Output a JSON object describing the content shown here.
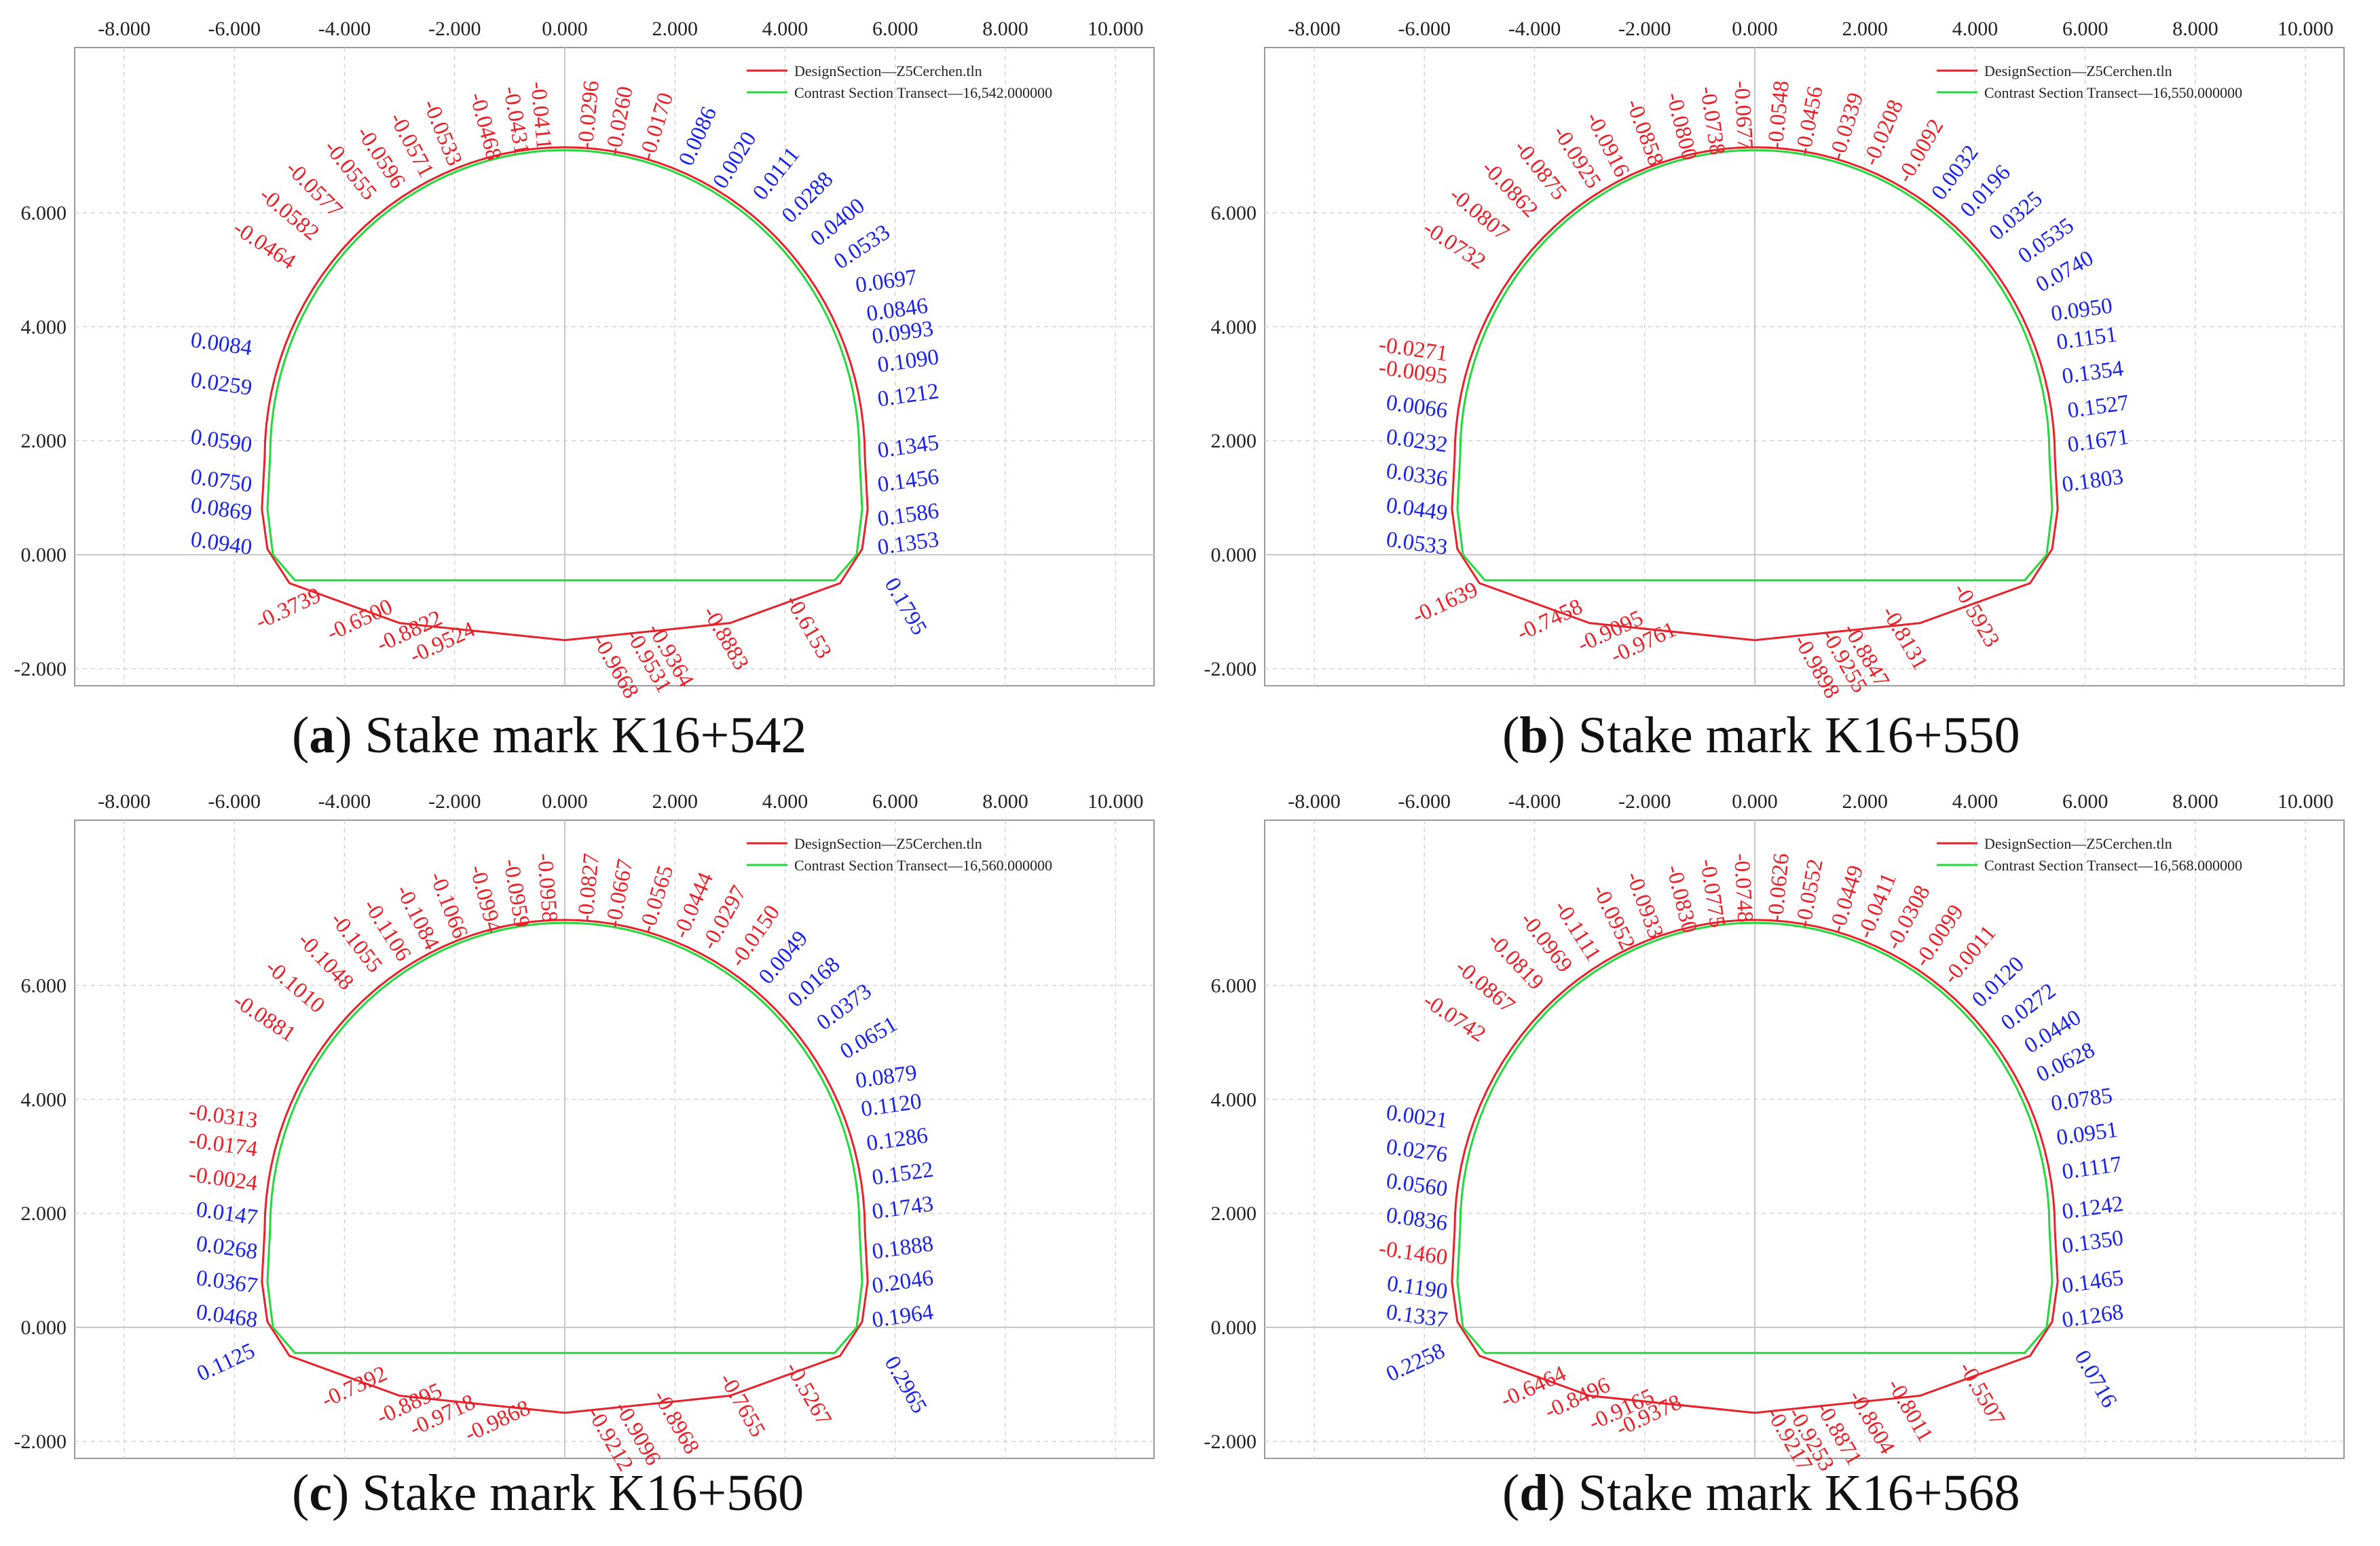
{
  "legend": {
    "design": "DesignSection—Z5Cerchen.tln",
    "contrast_prefix": "Contrast Section Transect—"
  },
  "colors": {
    "design": "#e8202a",
    "contrast": "#22d83a",
    "positive": "#1a22e6",
    "negative": "#e8202a",
    "grid": "#d4d4d4"
  },
  "chart_data": [
    {
      "type": "scatter",
      "panel_letter": "a",
      "caption": "Stake mark K16+542",
      "transect": "16,542.000000",
      "x_ticks": [
        "-8.000",
        "-6.000",
        "-4.000",
        "-2.000",
        "0.000",
        "2.000",
        "4.000",
        "6.000",
        "8.000",
        "10.000"
      ],
      "y_ticks": [
        "6.000",
        "4.000",
        "2.000",
        "0.000",
        "-2.000"
      ],
      "xlim": [
        -8.9,
        10.7
      ],
      "ylim": [
        -2.3,
        8.9
      ],
      "labels": [
        {
          "v": "-0.0411",
          "x": -0.5,
          "y": 7.1
        },
        {
          "v": "-0.0296",
          "x": 0.5,
          "y": 7.1
        },
        {
          "v": "-0.0431",
          "x": -0.9,
          "y": 7.0
        },
        {
          "v": "-0.0260",
          "x": 1.0,
          "y": 7.0
        },
        {
          "v": "-0.0468",
          "x": -1.4,
          "y": 6.9
        },
        {
          "v": "-0.0170",
          "x": 1.6,
          "y": 6.9
        },
        {
          "v": "-0.0533",
          "x": -2.1,
          "y": 6.8
        },
        {
          "v": "0.0086",
          "x": 2.3,
          "y": 6.8
        },
        {
          "v": "-0.0571",
          "x": -2.6,
          "y": 6.6
        },
        {
          "v": "0.0020",
          "x": 2.9,
          "y": 6.4
        },
        {
          "v": "-0.0596",
          "x": -3.1,
          "y": 6.4
        },
        {
          "v": "0.0111",
          "x": 3.6,
          "y": 6.2
        },
        {
          "v": "-0.0555",
          "x": -3.6,
          "y": 6.2
        },
        {
          "v": "0.0288",
          "x": 4.1,
          "y": 5.8
        },
        {
          "v": "-0.0577",
          "x": -4.2,
          "y": 5.9
        },
        {
          "v": "0.0400",
          "x": 4.6,
          "y": 5.4
        },
        {
          "v": "-0.0582",
          "x": -4.6,
          "y": 5.5
        },
        {
          "v": "0.0533",
          "x": 5.0,
          "y": 5.0
        },
        {
          "v": "-0.0464",
          "x": -5.0,
          "y": 5.0
        },
        {
          "v": "0.0697",
          "x": 5.3,
          "y": 4.6
        },
        {
          "v": "0.0846",
          "x": 5.5,
          "y": 4.1
        },
        {
          "v": "0.0993",
          "x": 5.6,
          "y": 3.7
        },
        {
          "v": "0.0084",
          "x": -5.7,
          "y": 3.5
        },
        {
          "v": "0.1090",
          "x": 5.7,
          "y": 3.2
        },
        {
          "v": "0.0259",
          "x": -5.7,
          "y": 2.8
        },
        {
          "v": "0.1212",
          "x": 5.7,
          "y": 2.6
        },
        {
          "v": "0.0590",
          "x": -5.7,
          "y": 1.8
        },
        {
          "v": "0.1345",
          "x": 5.7,
          "y": 1.7
        },
        {
          "v": "0.0750",
          "x": -5.7,
          "y": 1.1
        },
        {
          "v": "0.1456",
          "x": 5.7,
          "y": 1.1
        },
        {
          "v": "0.0869",
          "x": -5.7,
          "y": 0.6
        },
        {
          "v": "0.1586",
          "x": 5.7,
          "y": 0.5
        },
        {
          "v": "0.0940",
          "x": -5.7,
          "y": 0.0
        },
        {
          "v": "0.1353",
          "x": 5.7,
          "y": 0.0
        },
        {
          "v": "0.1795",
          "x": 5.8,
          "y": -0.5
        },
        {
          "v": "-0.3739",
          "x": -4.4,
          "y": -0.8
        },
        {
          "v": "-0.6500",
          "x": -3.1,
          "y": -1.0
        },
        {
          "v": "-0.8822",
          "x": -2.2,
          "y": -1.2
        },
        {
          "v": "-0.9524",
          "x": -1.6,
          "y": -1.4
        },
        {
          "v": "-0.9668",
          "x": 0.5,
          "y": -1.5
        },
        {
          "v": "-0.9531",
          "x": 1.1,
          "y": -1.4
        },
        {
          "v": "-0.9364",
          "x": 1.5,
          "y": -1.3
        },
        {
          "v": "-0.8883",
          "x": 2.5,
          "y": -1.0
        },
        {
          "v": "-0.6153",
          "x": 4.0,
          "y": -0.8
        }
      ]
    },
    {
      "type": "scatter",
      "panel_letter": "b",
      "caption": "Stake mark K16+550",
      "transect": "16,550.000000",
      "x_ticks": [
        "-8.000",
        "-6.000",
        "-4.000",
        "-2.000",
        "0.000",
        "2.000",
        "4.000",
        "6.000",
        "8.000",
        "10.000"
      ],
      "y_ticks": [
        "6.000",
        "4.000",
        "2.000",
        "0.000",
        "-2.000"
      ],
      "xlim": [
        -8.9,
        10.7
      ],
      "ylim": [
        -2.3,
        8.9
      ],
      "labels": [
        {
          "v": "-0.0677",
          "x": -0.3,
          "y": 7.1
        },
        {
          "v": "-0.0548",
          "x": 0.5,
          "y": 7.1
        },
        {
          "v": "-0.0738",
          "x": -0.8,
          "y": 7.0
        },
        {
          "v": "-0.0456",
          "x": 1.0,
          "y": 7.0
        },
        {
          "v": "-0.0800",
          "x": -1.3,
          "y": 6.9
        },
        {
          "v": "-0.0339",
          "x": 1.6,
          "y": 6.9
        },
        {
          "v": "-0.0858",
          "x": -1.9,
          "y": 6.8
        },
        {
          "v": "-0.0208",
          "x": 2.2,
          "y": 6.8
        },
        {
          "v": "-0.0916",
          "x": -2.5,
          "y": 6.6
        },
        {
          "v": "-0.0092",
          "x": 2.8,
          "y": 6.5
        },
        {
          "v": "-0.0925",
          "x": -3.0,
          "y": 6.4
        },
        {
          "v": "0.0032",
          "x": 3.4,
          "y": 6.2
        },
        {
          "v": "-0.0875",
          "x": -3.6,
          "y": 6.2
        },
        {
          "v": "0.0196",
          "x": 3.9,
          "y": 5.9
        },
        {
          "v": "-0.0862",
          "x": -4.1,
          "y": 5.9
        },
        {
          "v": "0.0325",
          "x": 4.4,
          "y": 5.5
        },
        {
          "v": "-0.0807",
          "x": -4.6,
          "y": 5.5
        },
        {
          "v": "0.0535",
          "x": 4.9,
          "y": 5.1
        },
        {
          "v": "-0.0732",
          "x": -5.0,
          "y": 5.0
        },
        {
          "v": "0.0740",
          "x": 5.2,
          "y": 4.6
        },
        {
          "v": "0.0950",
          "x": 5.4,
          "y": 4.1
        },
        {
          "v": "-0.0271",
          "x": -5.6,
          "y": 3.4
        },
        {
          "v": "0.1151",
          "x": 5.5,
          "y": 3.6
        },
        {
          "v": "-0.0095",
          "x": -5.6,
          "y": 3.0
        },
        {
          "v": "0.1354",
          "x": 5.6,
          "y": 3.0
        },
        {
          "v": "0.0066",
          "x": -5.6,
          "y": 2.4
        },
        {
          "v": "0.1527",
          "x": 5.7,
          "y": 2.4
        },
        {
          "v": "0.0232",
          "x": -5.6,
          "y": 1.8
        },
        {
          "v": "0.1671",
          "x": 5.7,
          "y": 1.8
        },
        {
          "v": "0.0336",
          "x": -5.6,
          "y": 1.2
        },
        {
          "v": "0.1803",
          "x": 5.6,
          "y": 1.1
        },
        {
          "v": "0.0449",
          "x": -5.6,
          "y": 0.6
        },
        {
          "v": "0.0533",
          "x": -5.6,
          "y": 0.0
        },
        {
          "v": "-0.1639",
          "x": -5.0,
          "y": -0.7
        },
        {
          "v": "-0.7458",
          "x": -3.1,
          "y": -1.0
        },
        {
          "v": "-0.9095",
          "x": -2.0,
          "y": -1.2
        },
        {
          "v": "-0.9761",
          "x": -1.4,
          "y": -1.4
        },
        {
          "v": "-0.9898",
          "x": 0.7,
          "y": -1.5
        },
        {
          "v": "-0.9255",
          "x": 1.2,
          "y": -1.4
        },
        {
          "v": "-0.8847",
          "x": 1.6,
          "y": -1.3
        },
        {
          "v": "-0.8131",
          "x": 2.3,
          "y": -1.0
        },
        {
          "v": "-0.5923",
          "x": 3.6,
          "y": -0.6
        }
      ]
    },
    {
      "type": "scatter",
      "panel_letter": "c",
      "caption": "Stake mark K16+560",
      "transect": "16,560.000000",
      "x_ticks": [
        "-8.000",
        "-6.000",
        "-4.000",
        "-2.000",
        "0.000",
        "2.000",
        "4.000",
        "6.000",
        "8.000",
        "10.000"
      ],
      "y_ticks": [
        "6.000",
        "4.000",
        "2.000",
        "0.000",
        "-2.000"
      ],
      "xlim": [
        -8.9,
        10.7
      ],
      "ylim": [
        -2.3,
        8.9
      ],
      "labels": [
        {
          "v": "-0.0958",
          "x": -0.4,
          "y": 7.1
        },
        {
          "v": "-0.0827",
          "x": 0.5,
          "y": 7.1
        },
        {
          "v": "-0.0959",
          "x": -0.9,
          "y": 7.0
        },
        {
          "v": "-0.0667",
          "x": 1.0,
          "y": 7.0
        },
        {
          "v": "-0.0994",
          "x": -1.4,
          "y": 6.9
        },
        {
          "v": "-0.0565",
          "x": 1.6,
          "y": 6.9
        },
        {
          "v": "-0.1066",
          "x": -2.0,
          "y": 6.8
        },
        {
          "v": "-0.0444",
          "x": 2.2,
          "y": 6.8
        },
        {
          "v": "-0.1084",
          "x": -2.5,
          "y": 6.6
        },
        {
          "v": "-0.0297",
          "x": 2.7,
          "y": 6.6
        },
        {
          "v": "-0.1106",
          "x": -3.0,
          "y": 6.4
        },
        {
          "v": "-0.0150",
          "x": 3.2,
          "y": 6.3
        },
        {
          "v": "-0.1055",
          "x": -3.5,
          "y": 6.2
        },
        {
          "v": "0.0049",
          "x": 3.7,
          "y": 6.0
        },
        {
          "v": "-0.1048",
          "x": -4.0,
          "y": 5.9
        },
        {
          "v": "0.0168",
          "x": 4.2,
          "y": 5.6
        },
        {
          "v": "-0.1010",
          "x": -4.5,
          "y": 5.5
        },
        {
          "v": "0.0373",
          "x": 4.7,
          "y": 5.2
        },
        {
          "v": "-0.0881",
          "x": -5.0,
          "y": 5.0
        },
        {
          "v": "0.0651",
          "x": 5.1,
          "y": 4.7
        },
        {
          "v": "0.0879",
          "x": 5.3,
          "y": 4.2
        },
        {
          "v": "-0.0313",
          "x": -5.6,
          "y": 3.5
        },
        {
          "v": "0.1120",
          "x": 5.4,
          "y": 3.7
        },
        {
          "v": "-0.0174",
          "x": -5.6,
          "y": 3.0
        },
        {
          "v": "0.1286",
          "x": 5.5,
          "y": 3.1
        },
        {
          "v": "-0.0024",
          "x": -5.6,
          "y": 2.4
        },
        {
          "v": "0.1522",
          "x": 5.6,
          "y": 2.5
        },
        {
          "v": "0.0147",
          "x": -5.6,
          "y": 1.8
        },
        {
          "v": "0.1743",
          "x": 5.6,
          "y": 1.9
        },
        {
          "v": "0.0268",
          "x": -5.6,
          "y": 1.2
        },
        {
          "v": "0.1888",
          "x": 5.6,
          "y": 1.2
        },
        {
          "v": "0.0367",
          "x": -5.6,
          "y": 0.6
        },
        {
          "v": "0.2046",
          "x": 5.6,
          "y": 0.6
        },
        {
          "v": "0.0468",
          "x": -5.6,
          "y": 0.0
        },
        {
          "v": "0.1964",
          "x": 5.6,
          "y": 0.0
        },
        {
          "v": "0.1125",
          "x": -5.6,
          "y": -0.5
        },
        {
          "v": "0.2965",
          "x": 5.8,
          "y": -0.6
        },
        {
          "v": "-0.7392",
          "x": -3.2,
          "y": -0.9
        },
        {
          "v": "-0.8895",
          "x": -2.2,
          "y": -1.2
        },
        {
          "v": "-0.9718",
          "x": -1.6,
          "y": -1.4
        },
        {
          "v": "-0.9868",
          "x": -0.6,
          "y": -1.5
        },
        {
          "v": "-0.9212",
          "x": 0.4,
          "y": -1.5
        },
        {
          "v": "-0.9096",
          "x": 0.9,
          "y": -1.4
        },
        {
          "v": "-0.8968",
          "x": 1.6,
          "y": -1.2
        },
        {
          "v": "-0.7655",
          "x": 2.8,
          "y": -0.9
        },
        {
          "v": "-0.5267",
          "x": 4.0,
          "y": -0.7
        }
      ]
    },
    {
      "type": "scatter",
      "panel_letter": "d",
      "caption": "Stake mark K16+568",
      "transect": "16,568.000000",
      "x_ticks": [
        "-8.000",
        "-6.000",
        "-4.000",
        "-2.000",
        "0.000",
        "2.000",
        "4.000",
        "6.000",
        "8.000",
        "10.000"
      ],
      "y_ticks": [
        "6.000",
        "4.000",
        "2.000",
        "0.000",
        "-2.000"
      ],
      "xlim": [
        -8.9,
        10.7
      ],
      "ylim": [
        -2.3,
        8.9
      ],
      "labels": [
        {
          "v": "-0.0748",
          "x": -0.3,
          "y": 7.1
        },
        {
          "v": "-0.0626",
          "x": 0.5,
          "y": 7.1
        },
        {
          "v": "-0.0775",
          "x": -0.8,
          "y": 7.0
        },
        {
          "v": "-0.0552",
          "x": 1.0,
          "y": 7.0
        },
        {
          "v": "-0.0830",
          "x": -1.3,
          "y": 6.9
        },
        {
          "v": "-0.0449",
          "x": 1.6,
          "y": 6.9
        },
        {
          "v": "-0.0933",
          "x": -1.9,
          "y": 6.8
        },
        {
          "v": "-0.0411",
          "x": 2.1,
          "y": 6.8
        },
        {
          "v": "-0.0952",
          "x": -2.4,
          "y": 6.6
        },
        {
          "v": "-0.0308",
          "x": 2.6,
          "y": 6.6
        },
        {
          "v": "-0.1111",
          "x": -3.0,
          "y": 6.4
        },
        {
          "v": "-0.0099",
          "x": 3.1,
          "y": 6.3
        },
        {
          "v": "-0.0969",
          "x": -3.5,
          "y": 6.2
        },
        {
          "v": "-0.0011",
          "x": 3.6,
          "y": 6.0
        },
        {
          "v": "-0.0819",
          "x": -4.0,
          "y": 5.9
        },
        {
          "v": "0.0120",
          "x": 4.1,
          "y": 5.6
        },
        {
          "v": "-0.0867",
          "x": -4.5,
          "y": 5.5
        },
        {
          "v": "0.0272",
          "x": 4.6,
          "y": 5.2
        },
        {
          "v": "-0.0742",
          "x": -5.0,
          "y": 5.0
        },
        {
          "v": "0.0440",
          "x": 5.0,
          "y": 4.8
        },
        {
          "v": "0.0628",
          "x": 5.2,
          "y": 4.3
        },
        {
          "v": "0.0021",
          "x": -5.6,
          "y": 3.5
        },
        {
          "v": "0.0785",
          "x": 5.4,
          "y": 3.8
        },
        {
          "v": "0.0276",
          "x": -5.6,
          "y": 2.9
        },
        {
          "v": "0.0951",
          "x": 5.5,
          "y": 3.2
        },
        {
          "v": "0.0560",
          "x": -5.6,
          "y": 2.3
        },
        {
          "v": "0.1117",
          "x": 5.6,
          "y": 2.6
        },
        {
          "v": "0.0836",
          "x": -5.6,
          "y": 1.7
        },
        {
          "v": "0.1242",
          "x": 5.6,
          "y": 1.9
        },
        {
          "v": "-0.1460",
          "x": -5.6,
          "y": 1.1
        },
        {
          "v": "0.1350",
          "x": 5.6,
          "y": 1.3
        },
        {
          "v": "0.1190",
          "x": -5.6,
          "y": 0.5
        },
        {
          "v": "0.1465",
          "x": 5.6,
          "y": 0.6
        },
        {
          "v": "0.1337",
          "x": -5.6,
          "y": 0.0
        },
        {
          "v": "0.1268",
          "x": 5.6,
          "y": 0.0
        },
        {
          "v": "0.2258",
          "x": -5.6,
          "y": -0.5
        },
        {
          "v": "0.0716",
          "x": 5.8,
          "y": -0.5
        },
        {
          "v": "-0.6464",
          "x": -3.4,
          "y": -0.9
        },
        {
          "v": "-0.8496",
          "x": -2.6,
          "y": -1.1
        },
        {
          "v": "-0.9165",
          "x": -1.8,
          "y": -1.3
        },
        {
          "v": "-0.9378",
          "x": -1.3,
          "y": -1.4
        },
        {
          "v": "-0.9217",
          "x": 0.2,
          "y": -1.5
        },
        {
          "v": "-0.9253",
          "x": 0.6,
          "y": -1.5
        },
        {
          "v": "-0.8871",
          "x": 1.1,
          "y": -1.4
        },
        {
          "v": "-0.8604",
          "x": 1.7,
          "y": -1.2
        },
        {
          "v": "-0.8011",
          "x": 2.4,
          "y": -1.0
        },
        {
          "v": "-0.5507",
          "x": 3.7,
          "y": -0.7
        }
      ]
    }
  ]
}
